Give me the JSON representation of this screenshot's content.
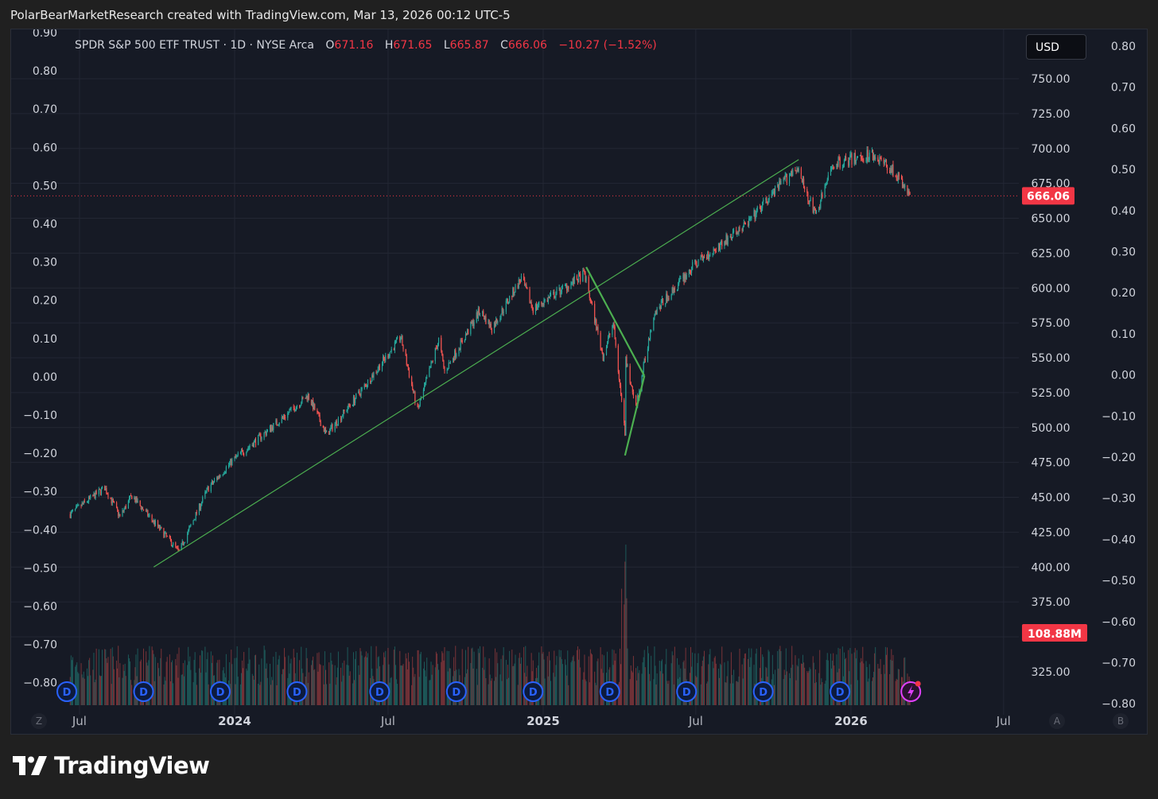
{
  "caption": "PolarBearMarketResearch created with TradingView.com, Mar 13, 2026 00:12 UTC-5",
  "legend": {
    "symbol": "SPDR S&P 500 ETF TRUST · 1D · NYSE Arca",
    "o_key": "O",
    "o_val": "671.16",
    "h_key": "H",
    "h_val": "671.65",
    "l_key": "L",
    "l_val": "665.87",
    "c_key": "C",
    "c_val": "666.06",
    "change": "−10.27 (−1.52%)"
  },
  "currency_button": "USD",
  "last_price_tag": "666.06",
  "volume_tag": "108.88M",
  "corner_labels": {
    "bottom_left": "Z",
    "a": "A",
    "b": "B"
  },
  "brand": "TradingView",
  "colors": {
    "up": "#26a69a",
    "down": "#ef5350",
    "trendline": "#4caf50",
    "price_tag": "#f23645",
    "dividend": "#2962ff",
    "background": "#161a25"
  },
  "icons": [
    "dividend-marker-icon",
    "flash-event-icon",
    "tradingview-logo-icon"
  ],
  "chart_data": {
    "type": "candlestick",
    "x_tick_labels": [
      "Jul",
      "2024",
      "Jul",
      "2025",
      "Jul",
      "2026",
      "Jul"
    ],
    "price_axis_labels": [
      "750.00",
      "725.00",
      "700.00",
      "675.00",
      "650.00",
      "625.00",
      "600.00",
      "575.00",
      "550.00",
      "525.00",
      "500.00",
      "475.00",
      "450.00",
      "425.00",
      "400.00",
      "375.00",
      "325.00"
    ],
    "left_axis_labels": [
      "0.90",
      "0.80",
      "0.70",
      "0.60",
      "0.50",
      "0.40",
      "0.30",
      "0.20",
      "0.10",
      "0.00",
      "−0.10",
      "−0.20",
      "−0.30",
      "−0.40",
      "−0.50",
      "−0.60",
      "−0.70",
      "−0.80"
    ],
    "right_axis_labels": [
      "0.80",
      "0.70",
      "0.60",
      "0.50",
      "0.40",
      "0.30",
      "0.20",
      "0.10",
      "0.00",
      "−0.10",
      "−0.20",
      "−0.30",
      "−0.40",
      "−0.50",
      "−0.60",
      "−0.70",
      "−0.80"
    ],
    "price_path": [
      [
        "2023-06-20",
        438
      ],
      [
        "2023-07-31",
        457
      ],
      [
        "2023-08-18",
        436
      ],
      [
        "2023-09-01",
        451
      ],
      [
        "2023-10-27",
        411
      ],
      [
        "2023-11-30",
        456
      ],
      [
        "2023-12-29",
        476
      ],
      [
        "2024-02-29",
        508
      ],
      [
        "2024-03-28",
        523
      ],
      [
        "2024-04-19",
        495
      ],
      [
        "2024-05-31",
        527
      ],
      [
        "2024-07-16",
        565
      ],
      [
        "2024-08-05",
        512
      ],
      [
        "2024-08-30",
        563
      ],
      [
        "2024-09-06",
        540
      ],
      [
        "2024-10-18",
        584
      ],
      [
        "2024-11-01",
        571
      ],
      [
        "2024-12-06",
        607
      ],
      [
        "2024-12-20",
        585
      ],
      [
        "2025-02-19",
        610
      ],
      [
        "2025-03-13",
        551
      ],
      [
        "2025-03-25",
        575
      ],
      [
        "2025-04-08",
        496
      ],
      [
        "2025-04-09",
        548
      ],
      [
        "2025-04-21",
        514
      ],
      [
        "2025-05-12",
        582
      ],
      [
        "2025-06-30",
        617
      ],
      [
        "2025-08-29",
        645
      ],
      [
        "2025-10-28",
        687
      ],
      [
        "2025-11-20",
        652
      ],
      [
        "2025-12-11",
        689
      ],
      [
        "2026-01-27",
        696
      ],
      [
        "2026-02-20",
        684
      ],
      [
        "2026-03-12",
        666
      ]
    ],
    "volume_spike_date": "2025-04-07",
    "dividend_markers": [
      "2023-06-16",
      "2023-09-15",
      "2023-12-15",
      "2024-03-15",
      "2024-06-21",
      "2024-09-20",
      "2024-12-20",
      "2025-03-21",
      "2025-06-20",
      "2025-09-19",
      "2025-12-19"
    ],
    "trendlines": [
      {
        "from": [
          "2023-09-27",
          400
        ],
        "to": [
          "2025-10-31",
          692
        ]
      },
      {
        "from": [
          "2025-02-21",
          615
        ],
        "to": [
          "2025-05-01",
          537
        ]
      },
      {
        "from": [
          "2025-04-08",
          480
        ],
        "to": [
          "2025-05-01",
          537
        ]
      }
    ]
  }
}
